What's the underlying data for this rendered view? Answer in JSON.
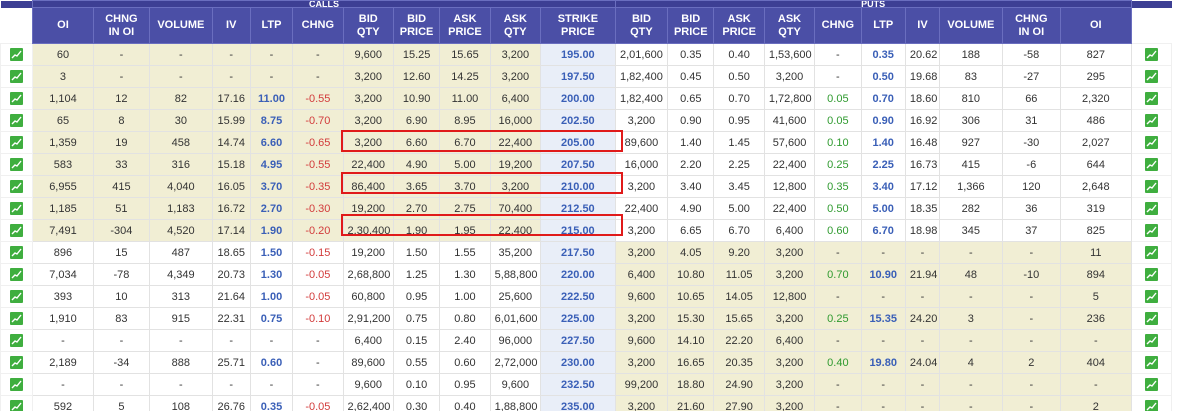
{
  "sections": {
    "calls": "CALLS",
    "puts": "PUTS"
  },
  "columns": [
    "OI",
    "CHNG\nIN OI",
    "VOLUME",
    "IV",
    "LTP",
    "CHNG",
    "BID\nQTY",
    "BID\nPRICE",
    "ASK\nPRICE",
    "ASK\nQTY",
    "STRIKE\nPRICE",
    "BID\nQTY",
    "BID\nPRICE",
    "ASK\nPRICE",
    "ASK\nQTY",
    "CHNG",
    "LTP",
    "IV",
    "VOLUME",
    "CHNG\nIN OI",
    "OI"
  ],
  "colors": {
    "header": "#4b4fa6",
    "itm": "#f1eed4",
    "strike": "#3a5fb7",
    "negative": "#d23b3b",
    "positive": "#2f9a2f",
    "highlight": "#e01a1a"
  },
  "chart_icon": "chart-icon",
  "rows": [
    {
      "c": [
        "60",
        "-",
        "-",
        "-",
        "-",
        "-",
        "9,600",
        "15.25",
        "15.65",
        "3,200"
      ],
      "s": "195.00",
      "p": [
        "2,01,600",
        "0.35",
        "0.40",
        "1,53,600",
        "-",
        "0.35",
        "20.62",
        "188",
        "-58",
        "827"
      ]
    },
    {
      "c": [
        "3",
        "-",
        "-",
        "-",
        "-",
        "-",
        "3,200",
        "12.60",
        "14.25",
        "3,200"
      ],
      "s": "197.50",
      "p": [
        "1,82,400",
        "0.45",
        "0.50",
        "3,200",
        "-",
        "0.50",
        "19.68",
        "83",
        "-27",
        "295"
      ]
    },
    {
      "c": [
        "1,104",
        "12",
        "82",
        "17.16",
        "11.00",
        "-0.55",
        "3,200",
        "10.90",
        "11.00",
        "6,400"
      ],
      "s": "200.00",
      "p": [
        "1,82,400",
        "0.65",
        "0.70",
        "1,72,800",
        "0.05",
        "0.70",
        "18.60",
        "810",
        "66",
        "2,320"
      ]
    },
    {
      "c": [
        "65",
        "8",
        "30",
        "15.99",
        "8.75",
        "-0.70",
        "3,200",
        "6.90",
        "8.95",
        "16,000"
      ],
      "s": "202.50",
      "p": [
        "3,200",
        "0.90",
        "0.95",
        "41,600",
        "0.05",
        "0.90",
        "16.92",
        "306",
        "31",
        "486"
      ]
    },
    {
      "c": [
        "1,359",
        "19",
        "458",
        "14.74",
        "6.60",
        "-0.65",
        "3,200",
        "6.60",
        "6.70",
        "22,400"
      ],
      "s": "205.00",
      "p": [
        "89,600",
        "1.40",
        "1.45",
        "57,600",
        "0.10",
        "1.40",
        "16.48",
        "927",
        "-30",
        "2,027"
      ]
    },
    {
      "c": [
        "583",
        "33",
        "316",
        "15.18",
        "4.95",
        "-0.55",
        "22,400",
        "4.90",
        "5.00",
        "19,200"
      ],
      "s": "207.50",
      "p": [
        "16,000",
        "2.20",
        "2.25",
        "22,400",
        "0.25",
        "2.25",
        "16.73",
        "415",
        "-6",
        "644"
      ]
    },
    {
      "c": [
        "6,955",
        "415",
        "4,040",
        "16.05",
        "3.70",
        "-0.35",
        "86,400",
        "3.65",
        "3.70",
        "3,200"
      ],
      "s": "210.00",
      "p": [
        "3,200",
        "3.40",
        "3.45",
        "12,800",
        "0.35",
        "3.40",
        "17.12",
        "1,366",
        "120",
        "2,648"
      ]
    },
    {
      "c": [
        "1,185",
        "51",
        "1,183",
        "16.72",
        "2.70",
        "-0.30",
        "19,200",
        "2.70",
        "2.75",
        "70,400"
      ],
      "s": "212.50",
      "p": [
        "22,400",
        "4.90",
        "5.00",
        "22,400",
        "0.50",
        "5.00",
        "18.35",
        "282",
        "36",
        "319"
      ]
    },
    {
      "c": [
        "7,491",
        "-304",
        "4,520",
        "17.14",
        "1.90",
        "-0.20",
        "2,30,400",
        "1.90",
        "1.95",
        "22,400"
      ],
      "s": "215.00",
      "p": [
        "3,200",
        "6.65",
        "6.70",
        "6,400",
        "0.60",
        "6.70",
        "18.98",
        "345",
        "37",
        "825"
      ]
    },
    {
      "c": [
        "896",
        "15",
        "487",
        "18.65",
        "1.50",
        "-0.15",
        "19,200",
        "1.50",
        "1.55",
        "35,200"
      ],
      "s": "217.50",
      "p": [
        "3,200",
        "4.05",
        "9.20",
        "3,200",
        "-",
        "-",
        "-",
        "-",
        "-",
        "11"
      ]
    },
    {
      "c": [
        "7,034",
        "-78",
        "4,349",
        "20.73",
        "1.30",
        "-0.05",
        "2,68,800",
        "1.25",
        "1.30",
        "5,88,800"
      ],
      "s": "220.00",
      "p": [
        "6,400",
        "10.80",
        "11.05",
        "3,200",
        "0.70",
        "10.90",
        "21.94",
        "48",
        "-10",
        "894"
      ]
    },
    {
      "c": [
        "393",
        "10",
        "313",
        "21.64",
        "1.00",
        "-0.05",
        "60,800",
        "0.95",
        "1.00",
        "25,600"
      ],
      "s": "222.50",
      "p": [
        "9,600",
        "10.65",
        "14.05",
        "12,800",
        "-",
        "-",
        "-",
        "-",
        "-",
        "5"
      ]
    },
    {
      "c": [
        "1,910",
        "83",
        "915",
        "22.31",
        "0.75",
        "-0.10",
        "2,91,200",
        "0.75",
        "0.80",
        "6,01,600"
      ],
      "s": "225.00",
      "p": [
        "3,200",
        "15.30",
        "15.65",
        "3,200",
        "0.25",
        "15.35",
        "24.20",
        "3",
        "-",
        "236"
      ]
    },
    {
      "c": [
        "-",
        "-",
        "-",
        "-",
        "-",
        "-",
        "6,400",
        "0.15",
        "2.40",
        "96,000"
      ],
      "s": "227.50",
      "p": [
        "9,600",
        "14.10",
        "22.20",
        "6,400",
        "-",
        "-",
        "-",
        "-",
        "-",
        "-"
      ]
    },
    {
      "c": [
        "2,189",
        "-34",
        "888",
        "25.71",
        "0.60",
        "-",
        "89,600",
        "0.55",
        "0.60",
        "2,72,000"
      ],
      "s": "230.00",
      "p": [
        "3,200",
        "16.65",
        "20.35",
        "3,200",
        "0.40",
        "19.80",
        "24.04",
        "4",
        "2",
        "404"
      ]
    },
    {
      "c": [
        "-",
        "-",
        "-",
        "-",
        "-",
        "-",
        "9,600",
        "0.10",
        "0.95",
        "9,600"
      ],
      "s": "232.50",
      "p": [
        "99,200",
        "18.80",
        "24.90",
        "3,200",
        "-",
        "-",
        "-",
        "-",
        "-",
        "-"
      ]
    },
    {
      "c": [
        "592",
        "5",
        "108",
        "26.76",
        "0.35",
        "-0.05",
        "2,62,400",
        "0.30",
        "0.40",
        "1,88,800"
      ],
      "s": "235.00",
      "p": [
        "3,200",
        "21.60",
        "27.90",
        "3,200",
        "-",
        "-",
        "-",
        "-",
        "-",
        "2"
      ]
    }
  ]
}
